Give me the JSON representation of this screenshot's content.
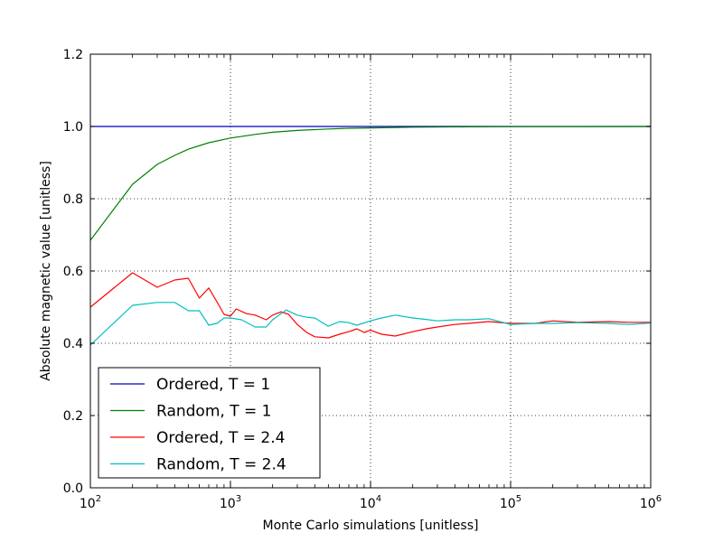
{
  "chart_data": {
    "type": "line",
    "xlabel": "Monte Carlo simulations [unitless]",
    "ylabel": "Absolute magnetic value [unitless]",
    "x_scale": "log",
    "xlim": [
      100,
      1000000
    ],
    "ylim": [
      0.0,
      1.2
    ],
    "grid": true,
    "legend_position": "lower-left",
    "y_ticks": [
      {
        "value": 0.0,
        "label": "0.0"
      },
      {
        "value": 0.2,
        "label": "0.2"
      },
      {
        "value": 0.4,
        "label": "0.4"
      },
      {
        "value": 0.6,
        "label": "0.6"
      },
      {
        "value": 0.8,
        "label": "0.8"
      },
      {
        "value": 1.0,
        "label": "1.0"
      },
      {
        "value": 1.2,
        "label": "1.2"
      }
    ],
    "x_ticks": [
      {
        "value": 100,
        "base": "10",
        "exp": "2"
      },
      {
        "value": 1000,
        "base": "10",
        "exp": "3"
      },
      {
        "value": 10000,
        "base": "10",
        "exp": "4"
      },
      {
        "value": 100000,
        "base": "10",
        "exp": "5"
      },
      {
        "value": 1000000,
        "base": "10",
        "exp": "6"
      }
    ],
    "series": [
      {
        "name": "Ordered, T = 1",
        "color": "#0000bf",
        "x": [
          100,
          1000,
          10000,
          100000,
          1000000
        ],
        "y": [
          1.0,
          1.0,
          1.0,
          1.0,
          1.0
        ]
      },
      {
        "name": "Random, T = 1",
        "color": "#008000",
        "x": [
          100,
          200,
          300,
          400,
          500,
          700,
          1000,
          1500,
          2000,
          3000,
          5000,
          7000,
          10000,
          20000,
          50000,
          100000,
          1000000
        ],
        "y": [
          0.685,
          0.84,
          0.895,
          0.92,
          0.937,
          0.955,
          0.968,
          0.978,
          0.984,
          0.989,
          0.993,
          0.995,
          0.996,
          0.998,
          0.999,
          0.9995,
          1.0
        ]
      },
      {
        "name": "Ordered, T = 2.4",
        "color": "#ff0000",
        "x": [
          100,
          200,
          300,
          400,
          500,
          600,
          700,
          800,
          900,
          1000,
          1100,
          1300,
          1500,
          1800,
          2000,
          2300,
          2600,
          3000,
          3500,
          4000,
          5000,
          6000,
          7000,
          8000,
          9000,
          10000,
          12000,
          15000,
          20000,
          25000,
          30000,
          40000,
          50000,
          70000,
          100000,
          150000,
          200000,
          300000,
          500000,
          700000,
          1000000
        ],
        "y": [
          0.5,
          0.595,
          0.555,
          0.575,
          0.58,
          0.525,
          0.553,
          0.515,
          0.48,
          0.475,
          0.495,
          0.482,
          0.478,
          0.465,
          0.478,
          0.487,
          0.48,
          0.452,
          0.43,
          0.418,
          0.415,
          0.425,
          0.432,
          0.44,
          0.43,
          0.436,
          0.425,
          0.42,
          0.432,
          0.44,
          0.445,
          0.452,
          0.455,
          0.46,
          0.455,
          0.455,
          0.462,
          0.458,
          0.46,
          0.458,
          0.458
        ]
      },
      {
        "name": "Random, T = 2.4",
        "color": "#00bfbf",
        "x": [
          100,
          200,
          300,
          400,
          500,
          600,
          700,
          800,
          900,
          1000,
          1200,
          1500,
          1800,
          2000,
          2500,
          3000,
          3500,
          4000,
          5000,
          6000,
          7000,
          8000,
          10000,
          12000,
          15000,
          20000,
          25000,
          30000,
          40000,
          50000,
          70000,
          100000,
          150000,
          200000,
          300000,
          500000,
          700000,
          1000000
        ],
        "y": [
          0.395,
          0.505,
          0.513,
          0.513,
          0.49,
          0.49,
          0.45,
          0.455,
          0.47,
          0.47,
          0.465,
          0.445,
          0.445,
          0.465,
          0.492,
          0.478,
          0.472,
          0.47,
          0.447,
          0.46,
          0.457,
          0.45,
          0.462,
          0.47,
          0.478,
          0.47,
          0.466,
          0.462,
          0.465,
          0.465,
          0.468,
          0.452,
          0.455,
          0.455,
          0.457,
          0.455,
          0.452,
          0.456
        ]
      }
    ]
  }
}
